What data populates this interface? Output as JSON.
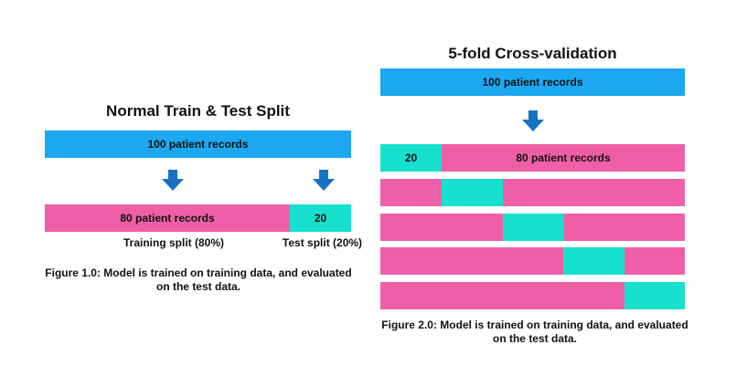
{
  "colors": {
    "total": "#1ba8f0",
    "train": "#ef5fa7",
    "test": "#17e1ce",
    "arrow": "#1773c2"
  },
  "left": {
    "title": "Normal Train & Test Split",
    "total_label": "100 patient records",
    "train_label": "80 patient records",
    "test_label": "20",
    "train_split_label": "Training split (80%)",
    "test_split_label": "Test split (20%)",
    "caption_line1": "Figure 1.0: Model is trained on training data, and evaluated",
    "caption_line2": "on the test data."
  },
  "right": {
    "title": "5-fold Cross-validation",
    "total_label": "100 patient records",
    "first_fold_test_label": "20",
    "first_fold_train_label": "80 patient records",
    "folds": 5,
    "caption_line1": "Figure 2.0: Model is trained on training data, and evaluated",
    "caption_line2": "on the test data."
  }
}
